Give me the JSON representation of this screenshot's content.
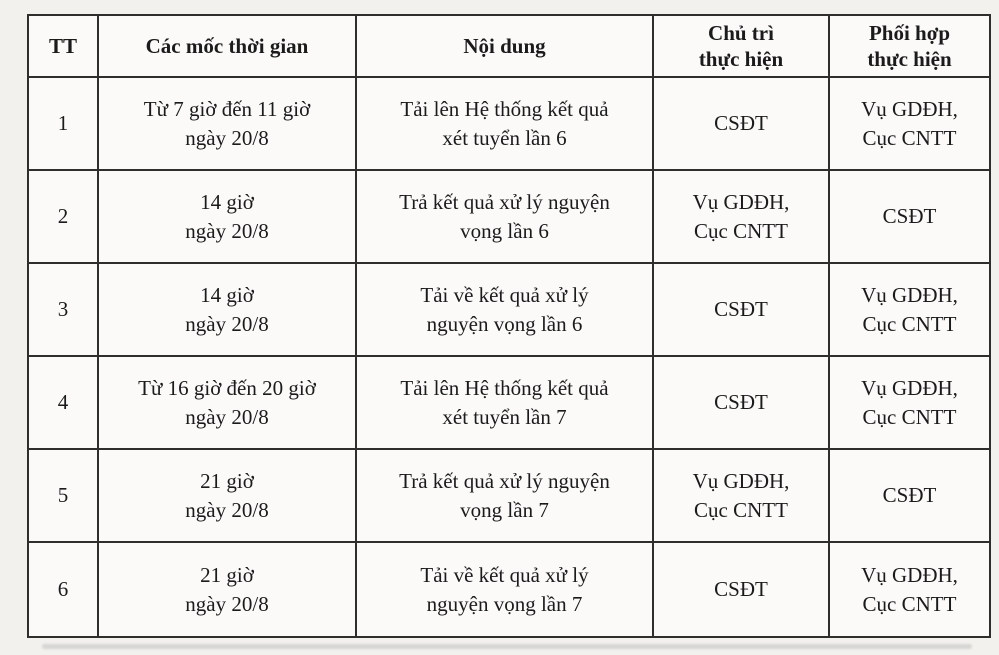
{
  "page": {
    "background_color": "#f2f1ee",
    "table_background_color": "#fbfaf9",
    "border_color": "#2f2e2d",
    "text_color": "#1b1b1b"
  },
  "table": {
    "headers": [
      {
        "id": "tt",
        "label": "TT"
      },
      {
        "id": "time",
        "label": "Các mốc thời gian"
      },
      {
        "id": "content",
        "label": "Nội dung"
      },
      {
        "id": "lead",
        "label": "Chủ trì\nthực hiện"
      },
      {
        "id": "support",
        "label": "Phối hợp\nthực hiện"
      }
    ],
    "rows": [
      {
        "tt": "1",
        "time": "Từ 7 giờ đến 11 giờ\nngày 20/8",
        "content": "Tải lên Hệ thống kết quả\nxét tuyển lần 6",
        "lead": "CSĐT",
        "support": "Vụ GDĐH,\nCục CNTT"
      },
      {
        "tt": "2",
        "time": "14 giờ\nngày 20/8",
        "content": "Trả kết quả xử lý nguyện\nvọng lần 6",
        "lead": "Vụ GDĐH,\nCục CNTT",
        "support": "CSĐT"
      },
      {
        "tt": "3",
        "time": "14 giờ\nngày 20/8",
        "content": "Tải về kết quả xử lý\nnguyện vọng lần 6",
        "lead": "CSĐT",
        "support": "Vụ GDĐH,\nCục CNTT"
      },
      {
        "tt": "4",
        "time": "Từ 16 giờ đến 20 giờ\nngày 20/8",
        "content": "Tải lên Hệ thống kết quả\nxét tuyển lần 7",
        "lead": "CSĐT",
        "support": "Vụ GDĐH,\nCục CNTT"
      },
      {
        "tt": "5",
        "time": "21 giờ\nngày 20/8",
        "content": "Trả kết quả xử lý nguyện\nvọng lần 7",
        "lead": "Vụ GDĐH,\nCục CNTT",
        "support": "CSĐT"
      },
      {
        "tt": "6",
        "time": "21 giờ\nngày 20/8",
        "content": "Tải về kết quả xử lý\nnguyện vọng lần 7",
        "lead": "CSĐT",
        "support": "Vụ GDĐH,\nCục CNTT"
      }
    ]
  }
}
